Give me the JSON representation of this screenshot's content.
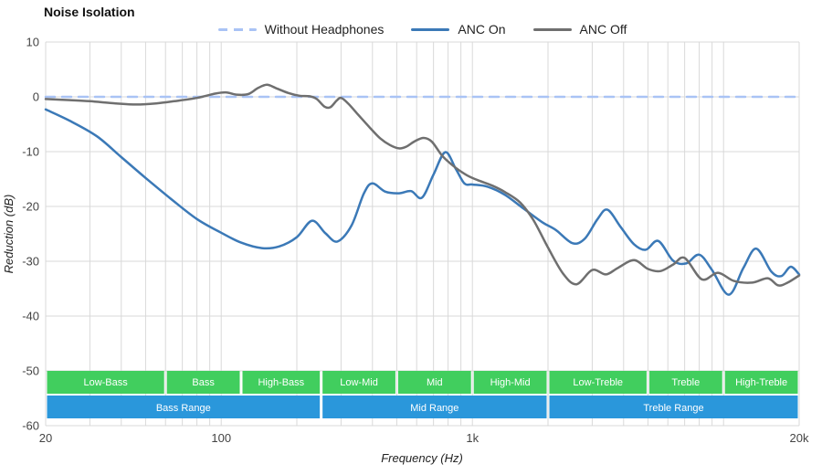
{
  "title": "Noise Isolation",
  "legend": [
    {
      "label": "Without Headphones",
      "color": "#A9C3F5",
      "dashed": true
    },
    {
      "label": "ANC On",
      "color": "#3B79B7",
      "dashed": false
    },
    {
      "label": "ANC Off",
      "color": "#6F6F6F",
      "dashed": false
    }
  ],
  "colors": {
    "gridline": "#D9D9D9",
    "band_green": "#41CE5E",
    "range_blue": "#2A97DB",
    "band_text": "#FFFFFF"
  },
  "chart_data": {
    "type": "line",
    "title": "Noise Isolation",
    "xlabel": "Frequency (Hz)",
    "ylabel": "Reduction (dB)",
    "x_scale": "log",
    "xlim": [
      20,
      20000
    ],
    "ylim": [
      -60,
      10
    ],
    "grid": true,
    "legend_position": "top-center",
    "y_ticks": [
      10,
      0,
      -10,
      -20,
      -30,
      -40,
      -50,
      -60
    ],
    "x_tick_labels": [
      {
        "f": 20,
        "label": "20"
      },
      {
        "f": 100,
        "label": "100"
      },
      {
        "f": 1000,
        "label": "1k"
      },
      {
        "f": 20000,
        "label": "20k"
      }
    ],
    "series": [
      {
        "name": "Without Headphones",
        "color": "#A9C3F5",
        "dashed": true,
        "points": [
          [
            20,
            0
          ],
          [
            20000,
            0
          ]
        ]
      },
      {
        "name": "ANC On",
        "color": "#3B79B7",
        "dashed": false,
        "points": [
          [
            20,
            -2.3
          ],
          [
            25,
            -4.4
          ],
          [
            32,
            -7.2
          ],
          [
            40,
            -11.0
          ],
          [
            50,
            -14.8
          ],
          [
            63,
            -18.6
          ],
          [
            80,
            -22.3
          ],
          [
            100,
            -24.8
          ],
          [
            120,
            -26.6
          ],
          [
            145,
            -27.6
          ],
          [
            170,
            -27.3
          ],
          [
            200,
            -25.6
          ],
          [
            230,
            -22.6
          ],
          [
            260,
            -24.9
          ],
          [
            290,
            -26.4
          ],
          [
            330,
            -23.5
          ],
          [
            370,
            -17.6
          ],
          [
            400,
            -15.8
          ],
          [
            450,
            -17.3
          ],
          [
            510,
            -17.6
          ],
          [
            570,
            -17.2
          ],
          [
            630,
            -18.4
          ],
          [
            700,
            -14.2
          ],
          [
            780,
            -10.1
          ],
          [
            860,
            -13.2
          ],
          [
            930,
            -15.8
          ],
          [
            1000,
            -16.0
          ],
          [
            1150,
            -16.4
          ],
          [
            1350,
            -17.9
          ],
          [
            1600,
            -20.4
          ],
          [
            1900,
            -22.9
          ],
          [
            2150,
            -24.3
          ],
          [
            2500,
            -26.7
          ],
          [
            2800,
            -25.9
          ],
          [
            3150,
            -22.3
          ],
          [
            3450,
            -20.6
          ],
          [
            3900,
            -23.8
          ],
          [
            4400,
            -26.9
          ],
          [
            4900,
            -27.9
          ],
          [
            5500,
            -26.3
          ],
          [
            6300,
            -29.9
          ],
          [
            7100,
            -30.4
          ],
          [
            8000,
            -28.8
          ],
          [
            9000,
            -31.6
          ],
          [
            10500,
            -36.1
          ],
          [
            12000,
            -31.2
          ],
          [
            13500,
            -27.7
          ],
          [
            15500,
            -31.9
          ],
          [
            17000,
            -32.7
          ],
          [
            18500,
            -31.0
          ],
          [
            20000,
            -32.4
          ]
        ]
      },
      {
        "name": "ANC Off",
        "color": "#6F6F6F",
        "dashed": false,
        "points": [
          [
            20,
            -0.4
          ],
          [
            25,
            -0.6
          ],
          [
            30,
            -0.8
          ],
          [
            38,
            -1.2
          ],
          [
            46,
            -1.4
          ],
          [
            55,
            -1.2
          ],
          [
            65,
            -0.8
          ],
          [
            80,
            -0.2
          ],
          [
            95,
            0.6
          ],
          [
            105,
            0.8
          ],
          [
            115,
            0.4
          ],
          [
            128,
            0.5
          ],
          [
            140,
            1.6
          ],
          [
            152,
            2.2
          ],
          [
            165,
            1.6
          ],
          [
            185,
            0.7
          ],
          [
            205,
            0.2
          ],
          [
            225,
            0.1
          ],
          [
            240,
            -0.4
          ],
          [
            258,
            -1.8
          ],
          [
            272,
            -1.9
          ],
          [
            288,
            -0.7
          ],
          [
            300,
            -0.2
          ],
          [
            320,
            -1.2
          ],
          [
            350,
            -3.2
          ],
          [
            390,
            -5.6
          ],
          [
            430,
            -7.6
          ],
          [
            470,
            -8.8
          ],
          [
            510,
            -9.4
          ],
          [
            545,
            -9.1
          ],
          [
            590,
            -8.1
          ],
          [
            640,
            -7.5
          ],
          [
            690,
            -8.2
          ],
          [
            760,
            -10.8
          ],
          [
            850,
            -12.8
          ],
          [
            950,
            -14.3
          ],
          [
            1050,
            -15.2
          ],
          [
            1200,
            -16.2
          ],
          [
            1350,
            -17.4
          ],
          [
            1550,
            -19.3
          ],
          [
            1750,
            -22.5
          ],
          [
            2000,
            -27.5
          ],
          [
            2300,
            -32.3
          ],
          [
            2600,
            -34.2
          ],
          [
            3000,
            -31.6
          ],
          [
            3400,
            -32.4
          ],
          [
            3800,
            -31.2
          ],
          [
            4400,
            -29.8
          ],
          [
            5000,
            -31.4
          ],
          [
            5600,
            -31.8
          ],
          [
            6300,
            -30.6
          ],
          [
            7000,
            -29.4
          ],
          [
            8200,
            -33.3
          ],
          [
            9500,
            -32.1
          ],
          [
            11000,
            -33.6
          ],
          [
            13000,
            -33.9
          ],
          [
            15000,
            -33.1
          ],
          [
            16500,
            -34.4
          ],
          [
            18000,
            -33.9
          ],
          [
            20000,
            -32.6
          ]
        ]
      }
    ],
    "bands": [
      {
        "label": "Low-Bass",
        "from": 20,
        "to": 60
      },
      {
        "label": "Bass",
        "from": 60,
        "to": 120
      },
      {
        "label": "High-Bass",
        "from": 120,
        "to": 250
      },
      {
        "label": "Low-Mid",
        "from": 250,
        "to": 500
      },
      {
        "label": "Mid",
        "from": 500,
        "to": 1000
      },
      {
        "label": "High-Mid",
        "from": 1000,
        "to": 2000
      },
      {
        "label": "Low-Treble",
        "from": 2000,
        "to": 5000
      },
      {
        "label": "Treble",
        "from": 5000,
        "to": 10000
      },
      {
        "label": "High-Treble",
        "from": 10000,
        "to": 20000
      }
    ],
    "ranges": [
      {
        "label": "Bass Range",
        "from": 20,
        "to": 250
      },
      {
        "label": "Mid Range",
        "from": 250,
        "to": 2000
      },
      {
        "label": "Treble Range",
        "from": 2000,
        "to": 20000
      }
    ]
  }
}
